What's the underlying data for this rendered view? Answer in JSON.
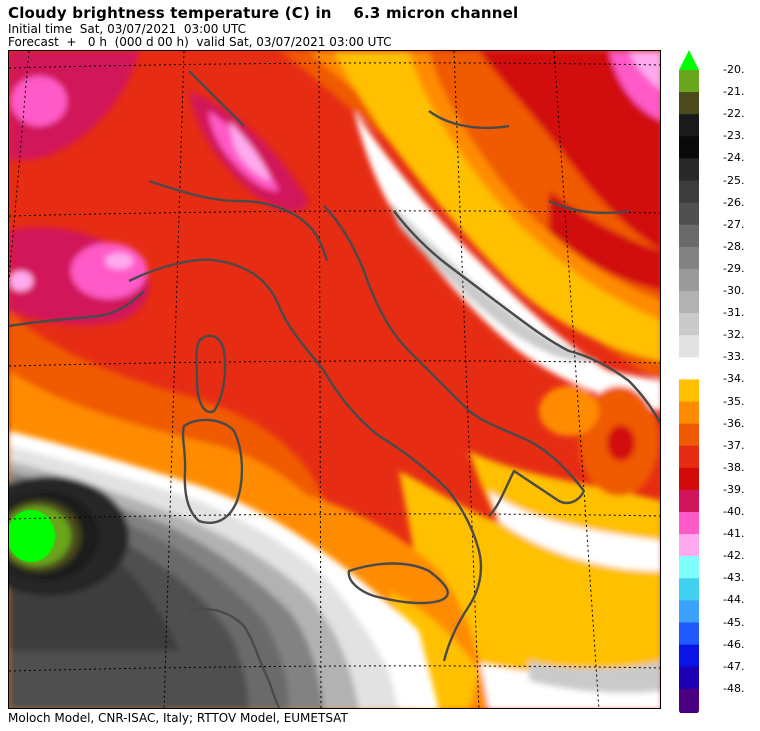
{
  "header": {
    "title": "Cloudy brightness temperature (C) in    6.3 micron channel",
    "initial_time": "Initial time  Sat, 03/07/2021  03:00 UTC",
    "forecast": "Forecast  +   0 h  (000 d 00 h)  valid Sat, 03/07/2021 03:00 UTC"
  },
  "footer": {
    "credits": "Moloch Model, CNR-ISAC, Italy; RTTOV Model, EUMETSAT"
  },
  "map": {
    "region": "Italy and Adriatic",
    "field": "cloudy brightness temperature",
    "unit": "C"
  },
  "colorbar": {
    "levels": [
      {
        "label": "-20.",
        "color": "#6aa51e"
      },
      {
        "label": "-21.",
        "color": "#4a4a1a"
      },
      {
        "label": "-22.",
        "color": "#1a1a1a"
      },
      {
        "label": "-23.",
        "color": "#0a0a0a"
      },
      {
        "label": "-24.",
        "color": "#282828"
      },
      {
        "label": "-25.",
        "color": "#3c3c3c"
      },
      {
        "label": "-26.",
        "color": "#505050"
      },
      {
        "label": "-27.",
        "color": "#6a6a6a"
      },
      {
        "label": "-28.",
        "color": "#828282"
      },
      {
        "label": "-29.",
        "color": "#9a9a9a"
      },
      {
        "label": "-30.",
        "color": "#b2b2b2"
      },
      {
        "label": "-31.",
        "color": "#cacaca"
      },
      {
        "label": "-32.",
        "color": "#e2e2e2"
      },
      {
        "label": "-33.",
        "color": "#ffffff"
      },
      {
        "label": "-34.",
        "color": "#ffc000"
      },
      {
        "label": "-35.",
        "color": "#ff8c00"
      },
      {
        "label": "-36.",
        "color": "#f05a00"
      },
      {
        "label": "-37.",
        "color": "#e62d14"
      },
      {
        "label": "-38.",
        "color": "#d20a0a"
      },
      {
        "label": "-39.",
        "color": "#d2145a"
      },
      {
        "label": "-40.",
        "color": "#ff5ac8"
      },
      {
        "label": "-41.",
        "color": "#ffaaf0"
      },
      {
        "label": "-42.",
        "color": "#80ffff"
      },
      {
        "label": "-43.",
        "color": "#40d0f0"
      },
      {
        "label": "-44.",
        "color": "#3ca0ff"
      },
      {
        "label": "-45.",
        "color": "#1e5aff"
      },
      {
        "label": "-46.",
        "color": "#0a14e6"
      },
      {
        "label": "-47.",
        "color": "#1e00b4"
      },
      {
        "label": "-48.",
        "color": "#4b0082"
      }
    ],
    "top_arrow_color": "#00ff00",
    "bottom_arrow_color": "#3c008c"
  }
}
